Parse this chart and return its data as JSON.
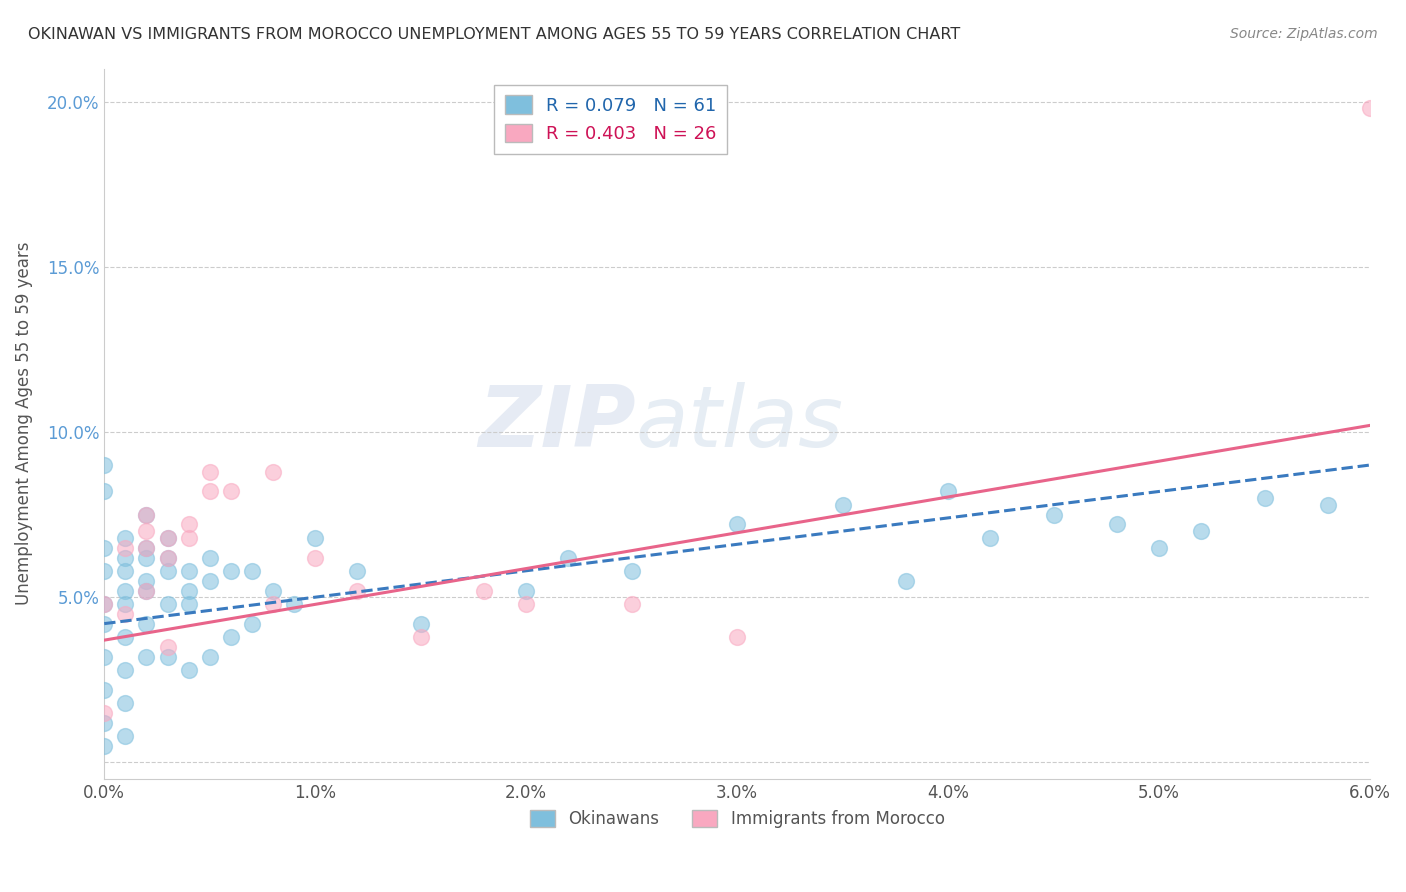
{
  "title": "OKINAWAN VS IMMIGRANTS FROM MOROCCO UNEMPLOYMENT AMONG AGES 55 TO 59 YEARS CORRELATION CHART",
  "source": "Source: ZipAtlas.com",
  "ylabel": "Unemployment Among Ages 55 to 59 years",
  "xmin": 0.0,
  "xmax": 0.06,
  "ymin": -0.005,
  "ymax": 0.21,
  "yticks": [
    0.0,
    0.05,
    0.1,
    0.15,
    0.2
  ],
  "ytick_labels": [
    "",
    "5.0%",
    "10.0%",
    "15.0%",
    "20.0%"
  ],
  "color_blue": "#7fbfdd",
  "color_pink": "#f9a8c0",
  "color_blue_line": "#3a7abf",
  "color_pink_line": "#e8648a",
  "color_blue_dark": "#2166ac",
  "color_pink_dark": "#ce1256",
  "blue_R": 0.079,
  "blue_N": 61,
  "pink_R": 0.403,
  "pink_N": 26,
  "blue_line_x0": 0.0,
  "blue_line_x1": 0.06,
  "blue_line_y0": 0.042,
  "blue_line_y1": 0.09,
  "pink_line_x0": 0.0,
  "pink_line_x1": 0.06,
  "pink_line_y0": 0.037,
  "pink_line_y1": 0.102,
  "blue_scatter_x": [
    0.0,
    0.0,
    0.0,
    0.0,
    0.0,
    0.0,
    0.0,
    0.0,
    0.0,
    0.0,
    0.001,
    0.001,
    0.001,
    0.001,
    0.001,
    0.001,
    0.001,
    0.001,
    0.001,
    0.002,
    0.002,
    0.002,
    0.002,
    0.002,
    0.002,
    0.002,
    0.003,
    0.003,
    0.003,
    0.003,
    0.003,
    0.004,
    0.004,
    0.004,
    0.004,
    0.005,
    0.005,
    0.005,
    0.006,
    0.006,
    0.007,
    0.007,
    0.008,
    0.009,
    0.01,
    0.012,
    0.015,
    0.02,
    0.022,
    0.025,
    0.03,
    0.035,
    0.038,
    0.04,
    0.042,
    0.045,
    0.048,
    0.05,
    0.052,
    0.055,
    0.058
  ],
  "blue_scatter_y": [
    0.048,
    0.09,
    0.082,
    0.065,
    0.058,
    0.042,
    0.032,
    0.022,
    0.012,
    0.005,
    0.052,
    0.062,
    0.068,
    0.058,
    0.048,
    0.038,
    0.028,
    0.018,
    0.008,
    0.055,
    0.065,
    0.075,
    0.062,
    0.052,
    0.042,
    0.032,
    0.068,
    0.062,
    0.058,
    0.048,
    0.032,
    0.058,
    0.052,
    0.048,
    0.028,
    0.062,
    0.055,
    0.032,
    0.058,
    0.038,
    0.058,
    0.042,
    0.052,
    0.048,
    0.068,
    0.058,
    0.042,
    0.052,
    0.062,
    0.058,
    0.072,
    0.078,
    0.055,
    0.082,
    0.068,
    0.075,
    0.072,
    0.065,
    0.07,
    0.08,
    0.078
  ],
  "pink_scatter_x": [
    0.0,
    0.0,
    0.001,
    0.001,
    0.002,
    0.002,
    0.002,
    0.002,
    0.003,
    0.003,
    0.003,
    0.004,
    0.004,
    0.005,
    0.005,
    0.006,
    0.008,
    0.008,
    0.01,
    0.012,
    0.015,
    0.018,
    0.02,
    0.025,
    0.03,
    0.06
  ],
  "pink_scatter_y": [
    0.048,
    0.015,
    0.065,
    0.045,
    0.075,
    0.07,
    0.065,
    0.052,
    0.068,
    0.062,
    0.035,
    0.072,
    0.068,
    0.088,
    0.082,
    0.082,
    0.088,
    0.048,
    0.062,
    0.052,
    0.038,
    0.052,
    0.048,
    0.048,
    0.038,
    0.198
  ]
}
